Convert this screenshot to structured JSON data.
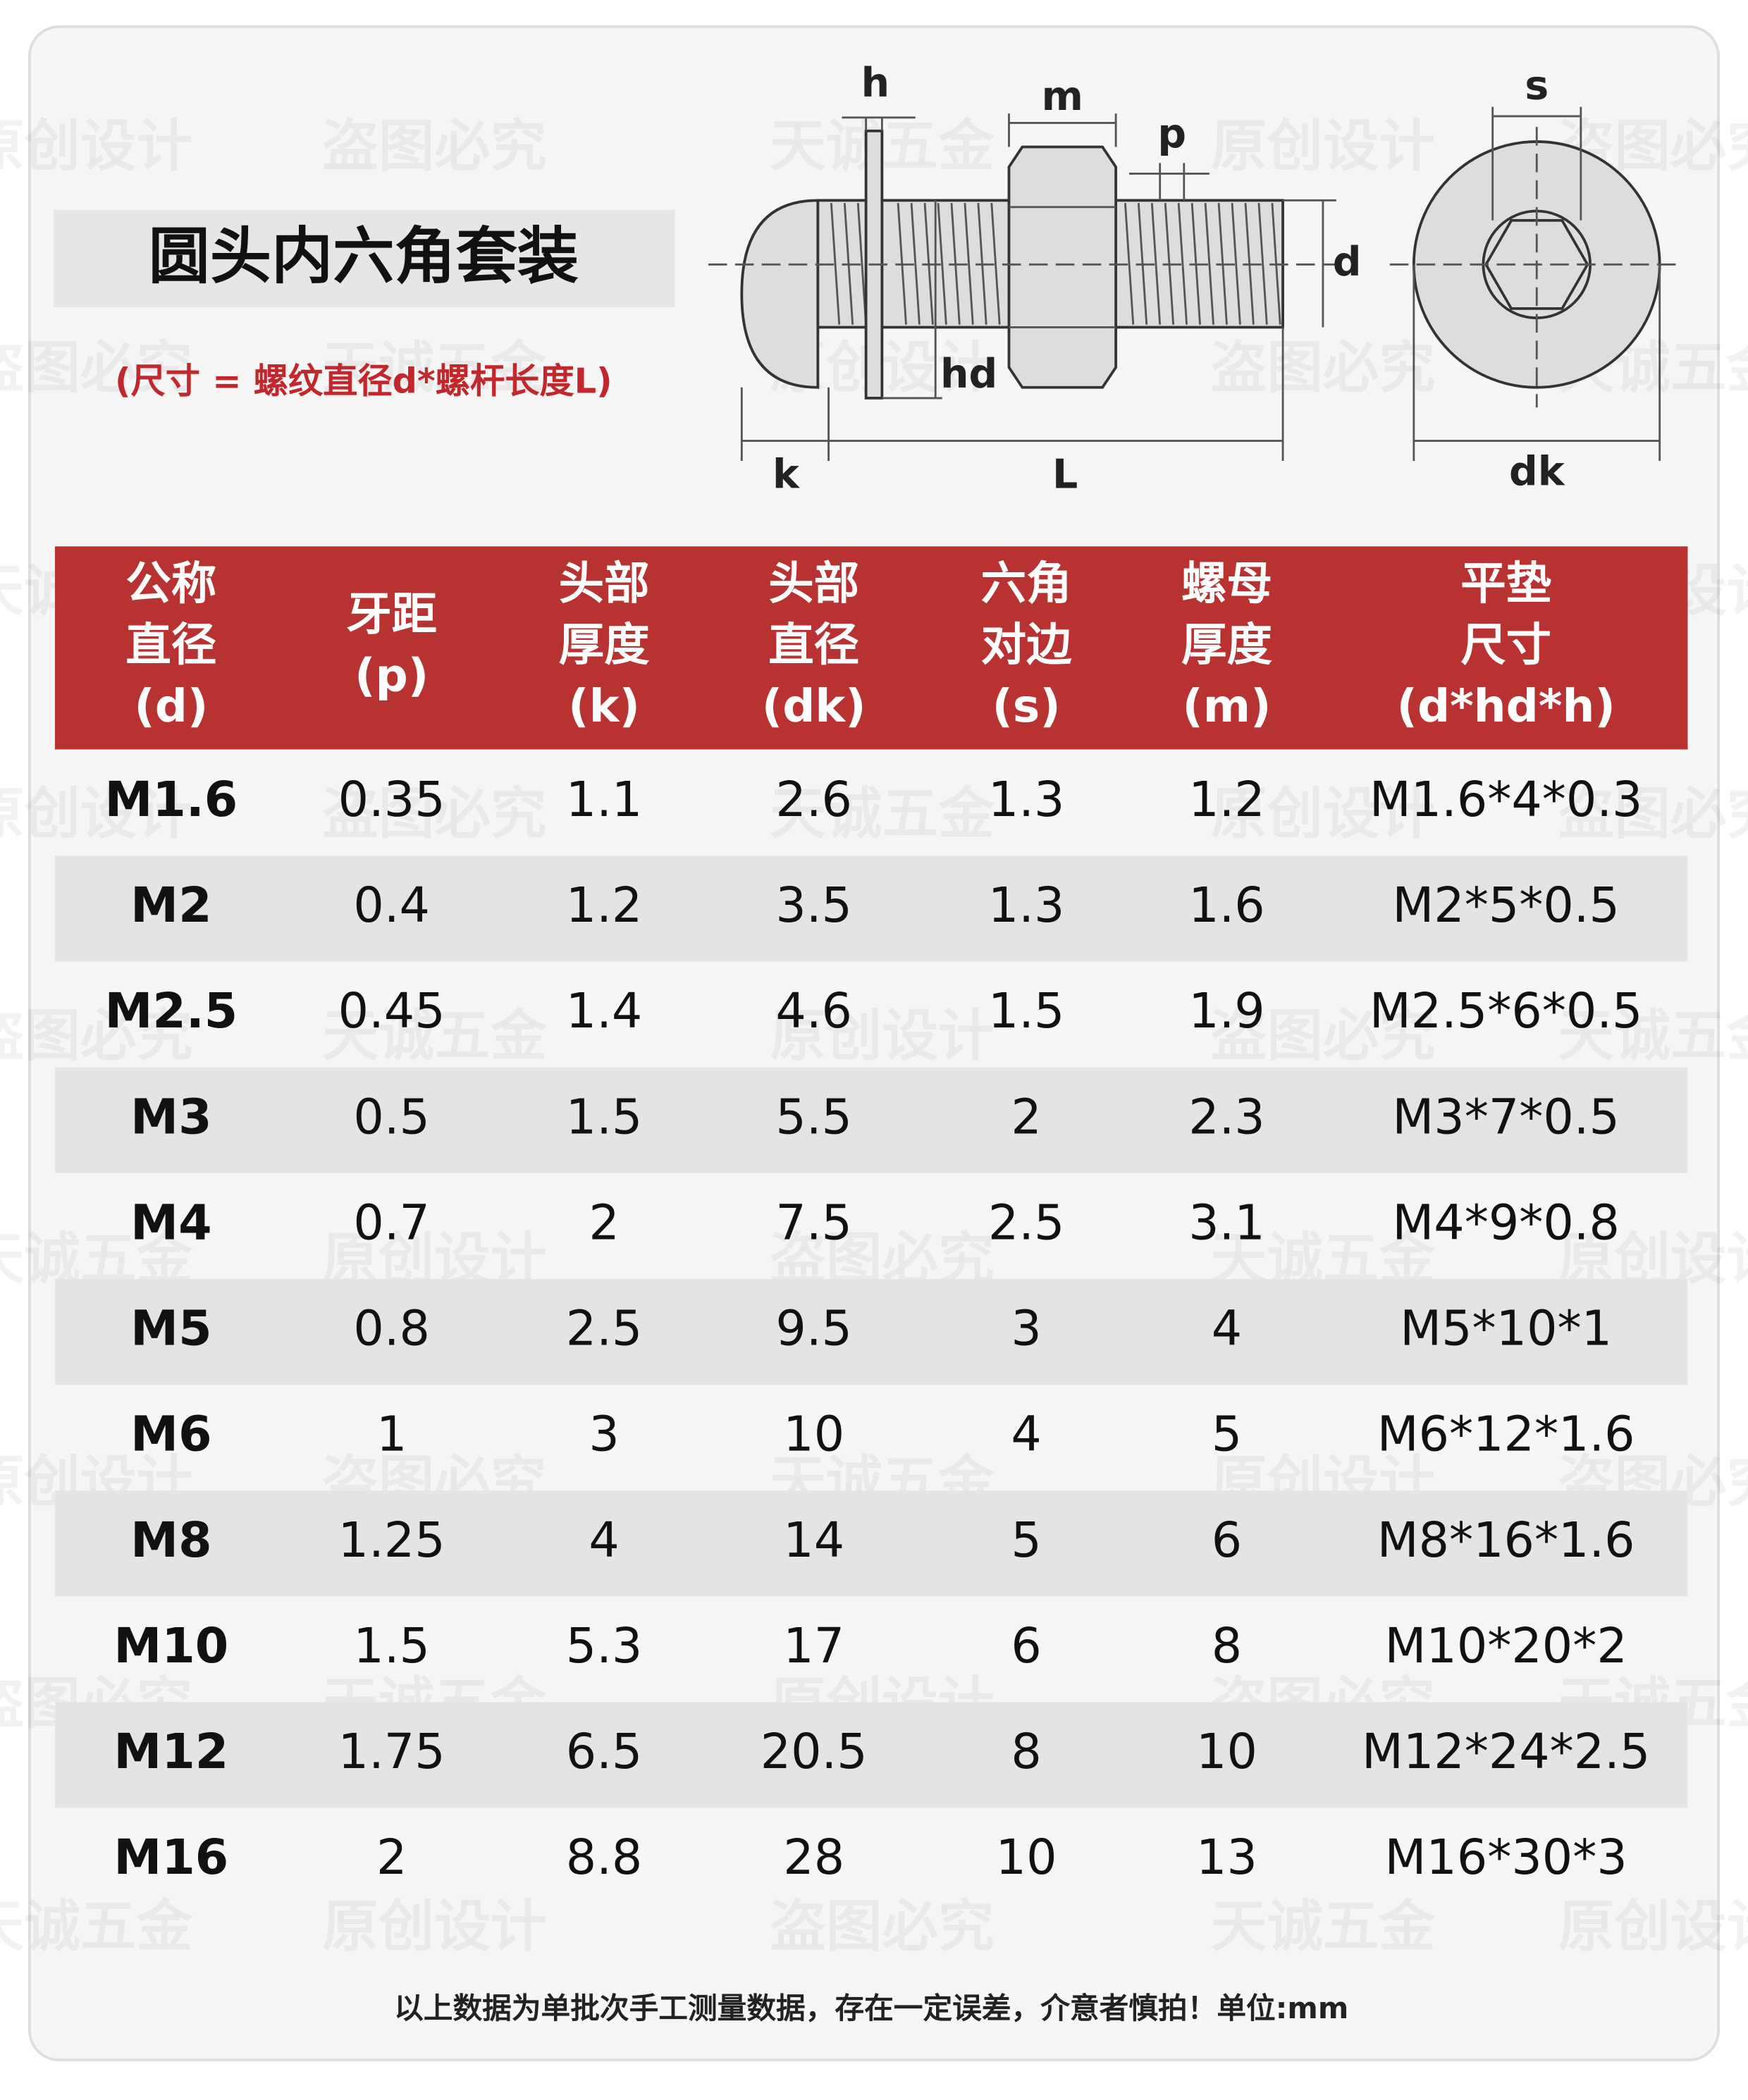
{
  "title": "圆头内六角套装",
  "subtitle": "(尺寸 = 螺纹直径d*螺杆长度L)",
  "diagram": {
    "h": "h",
    "m": "m",
    "p": "p",
    "d": "d",
    "hd": "hd",
    "k": "k",
    "L": "L",
    "s": "s",
    "dk": "dk"
  },
  "table": {
    "header": [
      [
        "公称",
        "直径",
        "(d)"
      ],
      [
        "牙距",
        "(p)"
      ],
      [
        "头部",
        "厚度",
        "(k)"
      ],
      [
        "头部",
        "直径",
        "(dk)"
      ],
      [
        "六角",
        "对边",
        "(s)"
      ],
      [
        "螺母",
        "厚度",
        "(m)"
      ],
      [
        "平垫",
        "尺寸",
        "(d*hd*h)"
      ]
    ],
    "rows": [
      [
        "M1.6",
        "0.35",
        "1.1",
        "2.6",
        "1.3",
        "1.2",
        "M1.6*4*0.3"
      ],
      [
        "M2",
        "0.4",
        "1.2",
        "3.5",
        "1.3",
        "1.6",
        "M2*5*0.5"
      ],
      [
        "M2.5",
        "0.45",
        "1.4",
        "4.6",
        "1.5",
        "1.9",
        "M2.5*6*0.5"
      ],
      [
        "M3",
        "0.5",
        "1.5",
        "5.5",
        "2",
        "2.3",
        "M3*7*0.5"
      ],
      [
        "M4",
        "0.7",
        "2",
        "7.5",
        "2.5",
        "3.1",
        "M4*9*0.8"
      ],
      [
        "M5",
        "0.8",
        "2.5",
        "9.5",
        "3",
        "4",
        "M5*10*1"
      ],
      [
        "M6",
        "1",
        "3",
        "10",
        "4",
        "5",
        "M6*12*1.6"
      ],
      [
        "M8",
        "1.25",
        "4",
        "14",
        "5",
        "6",
        "M8*16*1.6"
      ],
      [
        "M10",
        "1.5",
        "5.3",
        "17",
        "6",
        "8",
        "M10*20*2"
      ],
      [
        "M12",
        "1.75",
        "6.5",
        "20.5",
        "8",
        "10",
        "M12*24*2.5"
      ],
      [
        "M16",
        "2",
        "8.8",
        "28",
        "10",
        "13",
        "M16*30*3"
      ]
    ]
  },
  "footer": "以上数据为单批次手工测量数据，存在一定误差，介意者慎拍！单位:mm",
  "watermarks": [
    "原创设计",
    "盗图必究",
    "天诚五金"
  ]
}
